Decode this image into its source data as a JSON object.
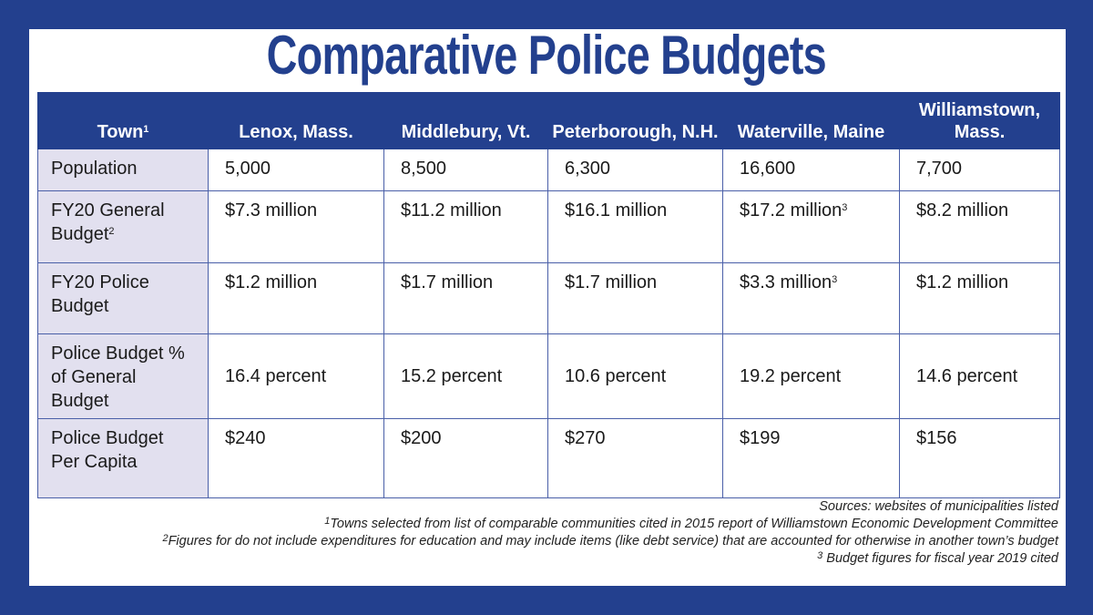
{
  "title": "Comparative Police Budgets",
  "chart_data": {
    "type": "table",
    "title": "Comparative Police Budgets",
    "header": {
      "label": "Town",
      "label_sup": "1"
    },
    "columns": [
      "Lenox, Mass.",
      "Middlebury, Vt.",
      "Peterborough, N.H.",
      "Waterville, Maine",
      "Williamstown, Mass."
    ],
    "rows": [
      {
        "label": "Population",
        "label_sup": "",
        "cells": [
          {
            "v": "5,000",
            "s": ""
          },
          {
            "v": "8,500",
            "s": ""
          },
          {
            "v": "6,300",
            "s": ""
          },
          {
            "v": "16,600",
            "s": ""
          },
          {
            "v": "7,700",
            "s": ""
          }
        ]
      },
      {
        "label": "FY20 General Budget",
        "label_sup": "2",
        "cells": [
          {
            "v": "$7.3 million",
            "s": ""
          },
          {
            "v": "$11.2 million",
            "s": ""
          },
          {
            "v": "$16.1 million",
            "s": ""
          },
          {
            "v": "$17.2 million",
            "s": "3"
          },
          {
            "v": "$8.2 million",
            "s": ""
          }
        ]
      },
      {
        "label": "FY20 Police Budget",
        "label_sup": "",
        "cells": [
          {
            "v": "$1.2 million",
            "s": ""
          },
          {
            "v": "$1.7 million",
            "s": ""
          },
          {
            "v": "$1.7 million",
            "s": ""
          },
          {
            "v": "$3.3 million",
            "s": "3"
          },
          {
            "v": "$1.2 million",
            "s": ""
          }
        ]
      },
      {
        "label": "Police Budget % of General Budget",
        "label_sup": "",
        "cells": [
          {
            "v": "16.4 percent",
            "s": ""
          },
          {
            "v": "15.2 percent",
            "s": ""
          },
          {
            "v": "10.6 percent",
            "s": ""
          },
          {
            "v": "19.2 percent",
            "s": ""
          },
          {
            "v": "14.6 percent",
            "s": ""
          }
        ]
      },
      {
        "label": "Police Budget Per Capita",
        "label_sup": "",
        "cells": [
          {
            "v": "$240",
            "s": ""
          },
          {
            "v": "$200",
            "s": ""
          },
          {
            "v": "$270",
            "s": ""
          },
          {
            "v": "$199",
            "s": ""
          },
          {
            "v": "$156",
            "s": ""
          }
        ]
      }
    ]
  },
  "notes": [
    {
      "sup": "",
      "text": "Sources: websites of municipalities listed"
    },
    {
      "sup": "1",
      "text": "Towns selected from list of comparable communities cited in 2015 report of Williamstown Economic Development Committee"
    },
    {
      "sup": "2",
      "text": "Figures for do not include expenditures for education and may include items (like debt service) that are accounted for otherwise in another town’s budget"
    },
    {
      "sup": "3",
      "text": " Budget figures for fiscal year 2019 cited"
    }
  ],
  "colors": {
    "brand": "#23408e",
    "label_bg": "#e2e0ef"
  }
}
